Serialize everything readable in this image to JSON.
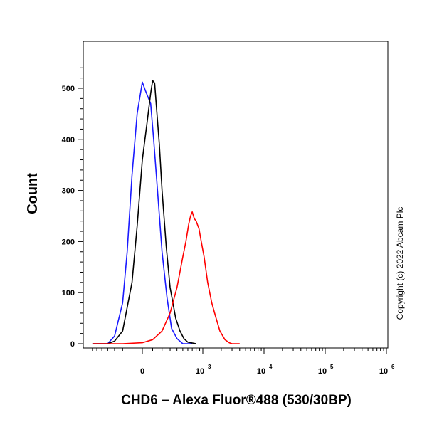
{
  "chart_data": {
    "type": "line",
    "xlabel": "CHD6 – Alexa Fluor®488 (530/30BP)",
    "ylabel": "Count",
    "ylim": [
      0,
      560
    ],
    "y_ticks": [
      0,
      100,
      200,
      300,
      400,
      500
    ],
    "x_ticks": [
      {
        "label": "0",
        "base": "",
        "exp": "",
        "value": 0
      },
      {
        "label": "",
        "base": "10",
        "exp": "3",
        "value": 1000
      },
      {
        "label": "",
        "base": "10",
        "exp": "4",
        "value": 10000
      },
      {
        "label": "",
        "base": "10",
        "exp": "5",
        "value": 100000
      },
      {
        "label": "",
        "base": "10",
        "exp": "6",
        "value": 1000000
      }
    ],
    "x_scale": "biexponential",
    "legend": "none",
    "grid": false,
    "series": [
      {
        "color": "#1a1aff",
        "x": [
          -700,
          -400,
          -300,
          -200,
          -150,
          -100,
          -50,
          0,
          30,
          60,
          80,
          110,
          150,
          200,
          260,
          320,
          400,
          500,
          700
        ],
        "y": [
          0,
          0,
          15,
          80,
          180,
          330,
          450,
          512,
          495,
          480,
          470,
          400,
          300,
          180,
          90,
          30,
          10,
          0,
          0
        ]
      },
      {
        "color": "#000000",
        "x": [
          -700,
          -400,
          -300,
          -200,
          -100,
          -50,
          0,
          50,
          80,
          100,
          120,
          140,
          170,
          200,
          250,
          300,
          380,
          450,
          520,
          600,
          800
        ],
        "y": [
          0,
          0,
          5,
          25,
          120,
          230,
          360,
          440,
          490,
          515,
          510,
          460,
          390,
          300,
          190,
          110,
          50,
          25,
          10,
          3,
          0
        ]
      },
      {
        "color": "#ff0000",
        "x": [
          -700,
          -200,
          0,
          100,
          200,
          300,
          400,
          500,
          560,
          620,
          660,
          700,
          750,
          800,
          880,
          950,
          1050,
          1200,
          1400,
          1600,
          1900,
          2300,
          2700,
          3000,
          4000
        ],
        "y": [
          0,
          0,
          2,
          8,
          25,
          60,
          110,
          170,
          200,
          235,
          250,
          258,
          245,
          240,
          225,
          200,
          170,
          120,
          80,
          55,
          25,
          8,
          2,
          0,
          0
        ]
      }
    ]
  },
  "copyright": "Copyright (c) 2022 Abcam Plc"
}
